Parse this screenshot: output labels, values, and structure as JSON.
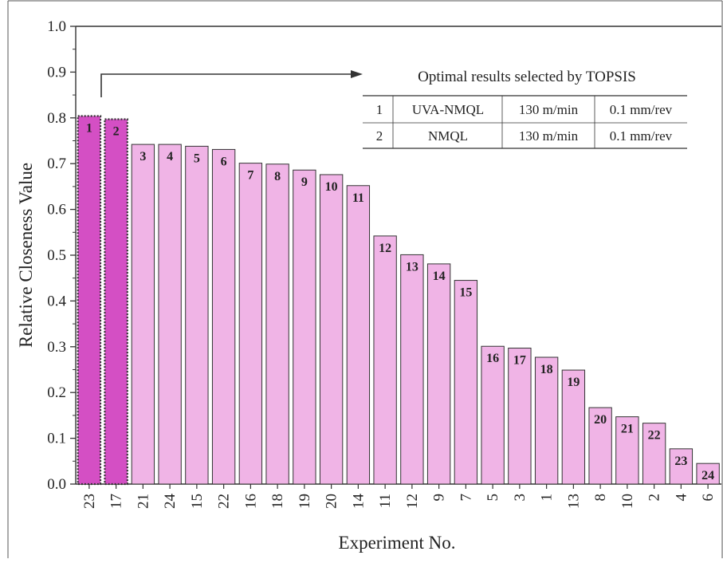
{
  "chart_data": {
    "type": "bar",
    "xlabel": "Experiment No.",
    "ylabel": "Relative Closeness Value",
    "ylim": [
      0,
      1.0
    ],
    "yticks": [
      "0.0",
      "0.1",
      "0.2",
      "0.3",
      "0.4",
      "0.5",
      "0.6",
      "0.7",
      "0.8",
      "0.9",
      "1.0"
    ],
    "categories": [
      "23",
      "17",
      "21",
      "24",
      "15",
      "22",
      "16",
      "18",
      "19",
      "20",
      "14",
      "11",
      "12",
      "9",
      "7",
      "5",
      "3",
      "1",
      "13",
      "8",
      "10",
      "2",
      "4",
      "6"
    ],
    "values": [
      0.804,
      0.797,
      0.742,
      0.742,
      0.738,
      0.731,
      0.701,
      0.699,
      0.686,
      0.676,
      0.652,
      0.542,
      0.501,
      0.481,
      0.445,
      0.301,
      0.297,
      0.277,
      0.249,
      0.167,
      0.147,
      0.133,
      0.077,
      0.045
    ],
    "ranks": [
      "1",
      "2",
      "3",
      "4",
      "5",
      "6",
      "7",
      "8",
      "9",
      "10",
      "11",
      "12",
      "13",
      "14",
      "15",
      "16",
      "17",
      "18",
      "19",
      "20",
      "21",
      "22",
      "23",
      "24"
    ],
    "highlight_count": 2,
    "colors": {
      "highlight": "#d44fc4",
      "normal": "#f0b4e6",
      "edge": "#333333"
    },
    "annotation": {
      "title": "Optimal results selected by TOPSIS",
      "rows": [
        [
          "1",
          "UVA-NMQL",
          "130 m/min",
          "0.1 mm/rev"
        ],
        [
          "2",
          "NMQL",
          "130 m/min",
          "0.1 mm/rev"
        ]
      ]
    }
  }
}
